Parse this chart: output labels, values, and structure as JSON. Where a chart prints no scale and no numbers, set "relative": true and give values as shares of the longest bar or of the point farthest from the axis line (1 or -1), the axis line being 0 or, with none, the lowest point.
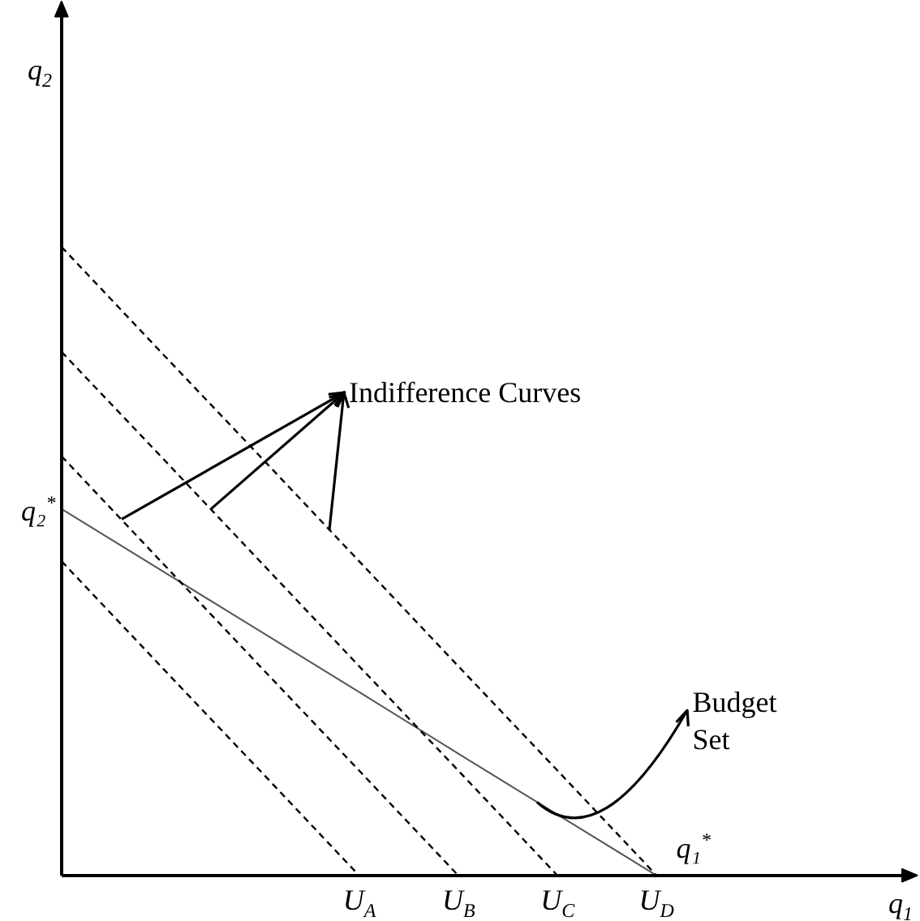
{
  "chart_data": {
    "type": "line",
    "relative": true,
    "xlabel": "q$_{1}$",
    "categories": [
      null,
      null,
      null,
      "U$_{A}$",
      "U$_{B}$",
      "U$_{C}$",
      "U$_{D}$",
      null,
      null
    ],
    "grid": false,
    "legend": false,
    "marker": "none",
    "series": [
      {
        "color": "#000000",
        "line_style": "dashed",
        "values": [
          0.5,
          0.333,
          0.167,
          0,
          null,
          null,
          null,
          null,
          null
        ]
      },
      {
        "color": "#000000",
        "line_style": "dashed",
        "values": [
          0.667,
          0.5,
          0.333,
          0.167,
          0,
          null,
          null,
          null,
          null
        ]
      },
      {
        "color": "#000000",
        "line_style": "dashed",
        "values": [
          0.833,
          0.667,
          0.5,
          0.333,
          0.167,
          0,
          null,
          null,
          null
        ]
      },
      {
        "color": "#000000",
        "line_style": "dashed",
        "values": [
          1,
          0.833,
          0.667,
          0.5,
          0.333,
          0.167,
          0,
          null,
          null
        ]
      },
      {
        "color": "#555555",
        "line_style": "solid",
        "values": [
          0.583,
          0.486,
          0.389,
          0.292,
          0.194,
          0.097,
          0,
          null,
          null
        ]
      }
    ],
    "annotations": [
      "q$_{2}$",
      "q₂$^{*}$",
      {
        "text": "q₁$^{*}$",
        "x": "U$_{D}$",
        "y": 0
      },
      "Indifference Curves",
      "Budget Set"
    ]
  }
}
